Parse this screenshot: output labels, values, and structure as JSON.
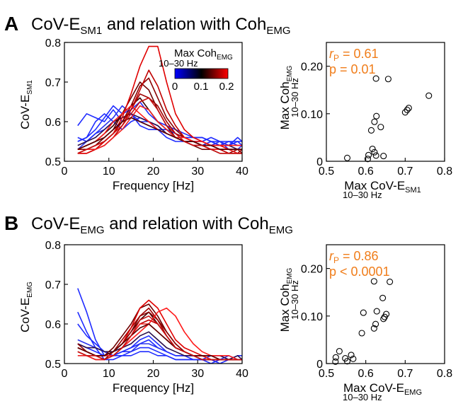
{
  "panels": [
    {
      "letter": "A",
      "title_prefix": "CoV-E",
      "title_sub": "SM1",
      "title_mid": " and relation with Coh",
      "title_sub2": "EMG"
    },
    {
      "letter": "B",
      "title_prefix": "CoV-E",
      "title_sub": "EMG",
      "title_mid": " and relation with Coh",
      "title_sub2": "EMG"
    }
  ],
  "colorbar": {
    "title": "Max Coh",
    "title_sub": "EMG",
    "range_label": "10–30 Hz",
    "ticks": [
      "0",
      "0.1",
      "0.2"
    ],
    "colors": [
      "#0000ff",
      "#000000",
      "#ff0000"
    ]
  },
  "chart_data": [
    {
      "type": "line",
      "panel": "A",
      "xlabel": "Frequency [Hz]",
      "ylabel_main": "CoV-E",
      "ylabel_sub": "SM1",
      "xlim": [
        0,
        40
      ],
      "ylim": [
        0.5,
        0.8
      ],
      "xticks": [
        "0",
        "10",
        "20",
        "30",
        "40"
      ],
      "yticks": [
        "0.5",
        "0.6",
        "0.7",
        "0.8"
      ],
      "x": [
        3,
        5,
        7,
        9,
        11,
        13,
        15,
        17,
        19,
        21,
        23,
        25,
        27,
        29,
        31,
        33,
        35,
        37,
        39,
        40
      ],
      "series": [
        {
          "color": "#1f2cff",
          "values": [
            0.59,
            0.62,
            0.61,
            0.6,
            0.63,
            0.6,
            0.61,
            0.6,
            0.59,
            0.58,
            0.58,
            0.57,
            0.56,
            0.55,
            0.55,
            0.56,
            0.55,
            0.54,
            0.56,
            0.55
          ]
        },
        {
          "color": "#1f2cff",
          "values": [
            0.55,
            0.56,
            0.58,
            0.61,
            0.64,
            0.62,
            0.63,
            0.65,
            0.62,
            0.6,
            0.59,
            0.58,
            0.57,
            0.56,
            0.56,
            0.55,
            0.55,
            0.55,
            0.54,
            0.54
          ]
        },
        {
          "color": "#1f2cff",
          "values": [
            0.55,
            0.56,
            0.6,
            0.62,
            0.6,
            0.61,
            0.62,
            0.59,
            0.58,
            0.58,
            0.56,
            0.55,
            0.55,
            0.54,
            0.54,
            0.55,
            0.54,
            0.54,
            0.55,
            0.55
          ]
        },
        {
          "color": "#2b35ee",
          "values": [
            0.53,
            0.55,
            0.57,
            0.59,
            0.61,
            0.64,
            0.62,
            0.6,
            0.6,
            0.59,
            0.57,
            0.56,
            0.55,
            0.55,
            0.54,
            0.54,
            0.55,
            0.53,
            0.53,
            0.54
          ]
        },
        {
          "color": "#1f2cff",
          "values": [
            0.56,
            0.55,
            0.57,
            0.58,
            0.6,
            0.58,
            0.6,
            0.61,
            0.6,
            0.58,
            0.58,
            0.57,
            0.56,
            0.56,
            0.56,
            0.55,
            0.54,
            0.55,
            0.55,
            0.54
          ]
        },
        {
          "color": "#2a0f4a",
          "values": [
            0.54,
            0.55,
            0.56,
            0.58,
            0.6,
            0.61,
            0.62,
            0.61,
            0.6,
            0.59,
            0.57,
            0.56,
            0.55,
            0.55,
            0.55,
            0.54,
            0.54,
            0.54,
            0.53,
            0.53
          ]
        },
        {
          "color": "#3b0000",
          "values": [
            0.53,
            0.54,
            0.55,
            0.57,
            0.59,
            0.62,
            0.64,
            0.66,
            0.63,
            0.6,
            0.58,
            0.56,
            0.55,
            0.55,
            0.54,
            0.53,
            0.53,
            0.53,
            0.53,
            0.53
          ]
        },
        {
          "color": "#6e0000",
          "values": [
            0.52,
            0.53,
            0.54,
            0.56,
            0.58,
            0.62,
            0.66,
            0.7,
            0.68,
            0.63,
            0.59,
            0.56,
            0.55,
            0.54,
            0.53,
            0.53,
            0.52,
            0.52,
            0.52,
            0.52
          ]
        },
        {
          "color": "#8a0000",
          "values": [
            0.53,
            0.53,
            0.54,
            0.55,
            0.57,
            0.6,
            0.64,
            0.69,
            0.71,
            0.66,
            0.61,
            0.58,
            0.56,
            0.55,
            0.54,
            0.53,
            0.53,
            0.52,
            0.53,
            0.52
          ]
        },
        {
          "color": "#a00000",
          "values": [
            0.52,
            0.53,
            0.53,
            0.55,
            0.57,
            0.6,
            0.63,
            0.67,
            0.66,
            0.64,
            0.6,
            0.57,
            0.56,
            0.55,
            0.54,
            0.54,
            0.53,
            0.53,
            0.52,
            0.53
          ]
        },
        {
          "color": "#c00000",
          "values": [
            0.52,
            0.52,
            0.53,
            0.54,
            0.56,
            0.59,
            0.63,
            0.68,
            0.73,
            0.69,
            0.63,
            0.59,
            0.56,
            0.55,
            0.54,
            0.53,
            0.53,
            0.52,
            0.52,
            0.52
          ]
        },
        {
          "color": "#e00000",
          "values": [
            0.52,
            0.52,
            0.53,
            0.55,
            0.57,
            0.61,
            0.67,
            0.74,
            0.79,
            0.79,
            0.7,
            0.62,
            0.58,
            0.56,
            0.55,
            0.54,
            0.54,
            0.53,
            0.53,
            0.53
          ]
        },
        {
          "color": "#ff1a1a",
          "values": [
            0.53,
            0.54,
            0.55,
            0.57,
            0.6,
            0.62,
            0.64,
            0.62,
            0.6,
            0.58,
            0.57,
            0.56,
            0.56,
            0.55,
            0.55,
            0.54,
            0.54,
            0.54,
            0.54,
            0.54
          ]
        },
        {
          "color": "#ee2020",
          "values": [
            0.52,
            0.53,
            0.53,
            0.54,
            0.56,
            0.58,
            0.61,
            0.64,
            0.63,
            0.6,
            0.58,
            0.56,
            0.55,
            0.54,
            0.54,
            0.53,
            0.53,
            0.53,
            0.52,
            0.52
          ]
        },
        {
          "color": "#550000",
          "values": [
            0.53,
            0.54,
            0.55,
            0.56,
            0.58,
            0.6,
            0.61,
            0.6,
            0.59,
            0.58,
            0.57,
            0.56,
            0.55,
            0.55,
            0.54,
            0.54,
            0.53,
            0.53,
            0.53,
            0.53
          ]
        },
        {
          "color": "#c81010",
          "values": [
            0.52,
            0.53,
            0.54,
            0.55,
            0.57,
            0.59,
            0.62,
            0.65,
            0.66,
            0.63,
            0.59,
            0.57,
            0.55,
            0.54,
            0.54,
            0.53,
            0.52,
            0.52,
            0.52,
            0.52
          ]
        }
      ]
    },
    {
      "type": "scatter",
      "panel": "A",
      "xlabel_main": "Max CoV-E",
      "xlabel_sub": "SM1",
      "xlabel_range": "10–30 Hz",
      "ylabel_main": "Max Coh",
      "ylabel_sub": "EMG",
      "ylabel_range": "10–30 Hz",
      "xlim": [
        0.5,
        0.8
      ],
      "ylim": [
        0,
        0.25
      ],
      "xticks": [
        "0.5",
        "0.6",
        "0.7",
        "0.8"
      ],
      "yticks": [
        "0",
        "0.10",
        "0.20"
      ],
      "stat_r_label": "r",
      "stat_r_sub": "P",
      "stat_r_value": " = 0.61",
      "stat_p": "p = 0.01",
      "points": [
        [
          0.553,
          0.007
        ],
        [
          0.605,
          0.005
        ],
        [
          0.607,
          0.013
        ],
        [
          0.617,
          0.026
        ],
        [
          0.622,
          0.019
        ],
        [
          0.626,
          0.012
        ],
        [
          0.645,
          0.011
        ],
        [
          0.614,
          0.065
        ],
        [
          0.622,
          0.083
        ],
        [
          0.627,
          0.095
        ],
        [
          0.638,
          0.072
        ],
        [
          0.626,
          0.174
        ],
        [
          0.657,
          0.173
        ],
        [
          0.7,
          0.103
        ],
        [
          0.705,
          0.108
        ],
        [
          0.709,
          0.112
        ],
        [
          0.76,
          0.138
        ]
      ]
    },
    {
      "type": "line",
      "panel": "B",
      "xlabel": "Frequency [Hz]",
      "ylabel_main": "CoV-E",
      "ylabel_sub": "EMG",
      "xlim": [
        0,
        40
      ],
      "ylim": [
        0.5,
        0.8
      ],
      "xticks": [
        "0",
        "10",
        "20",
        "30",
        "40"
      ],
      "yticks": [
        "0.5",
        "0.6",
        "0.7",
        "0.8"
      ],
      "x": [
        3,
        5,
        7,
        9,
        11,
        13,
        15,
        17,
        19,
        21,
        23,
        25,
        27,
        29,
        31,
        33,
        35,
        37,
        39,
        40
      ],
      "series": [
        {
          "color": "#1f2cff",
          "values": [
            0.69,
            0.63,
            0.56,
            0.52,
            0.52,
            0.53,
            0.54,
            0.55,
            0.56,
            0.54,
            0.53,
            0.52,
            0.52,
            0.51,
            0.51,
            0.51,
            0.51,
            0.51,
            0.51,
            0.51
          ]
        },
        {
          "color": "#1f2cff",
          "values": [
            0.63,
            0.58,
            0.54,
            0.51,
            0.51,
            0.52,
            0.53,
            0.54,
            0.54,
            0.53,
            0.52,
            0.51,
            0.51,
            0.51,
            0.51,
            0.51,
            0.5,
            0.51,
            0.51,
            0.51
          ]
        },
        {
          "color": "#1f2cff",
          "values": [
            0.6,
            0.57,
            0.55,
            0.53,
            0.52,
            0.52,
            0.52,
            0.53,
            0.53,
            0.52,
            0.52,
            0.51,
            0.51,
            0.51,
            0.51,
            0.5,
            0.51,
            0.51,
            0.51,
            0.51
          ]
        },
        {
          "color": "#2b35ee",
          "values": [
            0.56,
            0.55,
            0.54,
            0.53,
            0.52,
            0.53,
            0.53,
            0.55,
            0.55,
            0.54,
            0.53,
            0.52,
            0.52,
            0.52,
            0.51,
            0.51,
            0.51,
            0.52,
            0.51,
            0.51
          ]
        },
        {
          "color": "#1f2cff",
          "values": [
            0.55,
            0.54,
            0.53,
            0.52,
            0.52,
            0.53,
            0.54,
            0.56,
            0.57,
            0.55,
            0.53,
            0.52,
            0.52,
            0.52,
            0.51,
            0.52,
            0.52,
            0.51,
            0.52,
            0.52
          ]
        },
        {
          "color": "#2a0f4a",
          "values": [
            0.55,
            0.54,
            0.54,
            0.53,
            0.53,
            0.54,
            0.55,
            0.57,
            0.58,
            0.56,
            0.54,
            0.53,
            0.52,
            0.52,
            0.52,
            0.52,
            0.52,
            0.51,
            0.52,
            0.51
          ]
        },
        {
          "color": "#3b0000",
          "values": [
            0.54,
            0.53,
            0.52,
            0.52,
            0.53,
            0.55,
            0.58,
            0.61,
            0.63,
            0.6,
            0.57,
            0.54,
            0.53,
            0.52,
            0.52,
            0.51,
            0.51,
            0.51,
            0.51,
            0.51
          ]
        },
        {
          "color": "#6e0000",
          "values": [
            0.54,
            0.53,
            0.52,
            0.52,
            0.54,
            0.57,
            0.6,
            0.64,
            0.65,
            0.62,
            0.58,
            0.55,
            0.53,
            0.52,
            0.52,
            0.51,
            0.51,
            0.51,
            0.51,
            0.51
          ]
        },
        {
          "color": "#8a0000",
          "values": [
            0.55,
            0.53,
            0.52,
            0.51,
            0.53,
            0.55,
            0.58,
            0.62,
            0.63,
            0.61,
            0.58,
            0.55,
            0.53,
            0.52,
            0.51,
            0.51,
            0.51,
            0.51,
            0.51,
            0.51
          ]
        },
        {
          "color": "#a00000",
          "values": [
            0.53,
            0.52,
            0.52,
            0.52,
            0.53,
            0.56,
            0.59,
            0.62,
            0.64,
            0.61,
            0.57,
            0.54,
            0.53,
            0.52,
            0.52,
            0.51,
            0.51,
            0.51,
            0.51,
            0.51
          ]
        },
        {
          "color": "#c00000",
          "values": [
            0.53,
            0.52,
            0.51,
            0.51,
            0.52,
            0.54,
            0.57,
            0.6,
            0.61,
            0.6,
            0.57,
            0.54,
            0.53,
            0.52,
            0.52,
            0.51,
            0.51,
            0.51,
            0.51,
            0.51
          ]
        },
        {
          "color": "#e00000",
          "values": [
            0.54,
            0.53,
            0.52,
            0.52,
            0.53,
            0.55,
            0.59,
            0.64,
            0.66,
            0.64,
            0.6,
            0.56,
            0.54,
            0.53,
            0.52,
            0.52,
            0.51,
            0.51,
            0.51,
            0.51
          ]
        },
        {
          "color": "#ff1a1a",
          "values": [
            0.54,
            0.53,
            0.52,
            0.52,
            0.52,
            0.54,
            0.56,
            0.58,
            0.6,
            0.63,
            0.64,
            0.62,
            0.58,
            0.55,
            0.53,
            0.52,
            0.52,
            0.52,
            0.51,
            0.51
          ]
        },
        {
          "color": "#ee2020",
          "values": [
            0.52,
            0.52,
            0.51,
            0.51,
            0.52,
            0.54,
            0.57,
            0.6,
            0.6,
            0.58,
            0.56,
            0.54,
            0.53,
            0.52,
            0.52,
            0.51,
            0.51,
            0.51,
            0.51,
            0.51
          ]
        },
        {
          "color": "#550000",
          "values": [
            0.54,
            0.53,
            0.52,
            0.52,
            0.53,
            0.55,
            0.57,
            0.59,
            0.6,
            0.58,
            0.56,
            0.54,
            0.53,
            0.52,
            0.52,
            0.52,
            0.51,
            0.51,
            0.51,
            0.51
          ]
        },
        {
          "color": "#c81010",
          "values": [
            0.53,
            0.52,
            0.52,
            0.51,
            0.52,
            0.54,
            0.57,
            0.61,
            0.62,
            0.6,
            0.57,
            0.54,
            0.53,
            0.52,
            0.51,
            0.51,
            0.51,
            0.51,
            0.51,
            0.51
          ]
        }
      ]
    },
    {
      "type": "scatter",
      "panel": "B",
      "xlabel_main": "Max CoV-E",
      "xlabel_sub": "EMG",
      "xlabel_range": "10–30 Hz",
      "ylabel_main": "Max Coh",
      "ylabel_sub": "EMG",
      "ylabel_range": "10–30 Hz",
      "xlim": [
        0.5,
        0.8
      ],
      "ylim": [
        0,
        0.25
      ],
      "xticks": [
        "0.5",
        "0.6",
        "0.7",
        "0.8"
      ],
      "yticks": [
        "0",
        "0.10",
        "0.20"
      ],
      "stat_r_label": "r",
      "stat_r_sub": "P",
      "stat_r_value": " = 0.86",
      "stat_p": "p < 0.0001",
      "points": [
        [
          0.523,
          0.004
        ],
        [
          0.524,
          0.013
        ],
        [
          0.533,
          0.026
        ],
        [
          0.548,
          0.011
        ],
        [
          0.553,
          0.005
        ],
        [
          0.563,
          0.018
        ],
        [
          0.568,
          0.01
        ],
        [
          0.59,
          0.064
        ],
        [
          0.594,
          0.107
        ],
        [
          0.621,
          0.173
        ],
        [
          0.621,
          0.074
        ],
        [
          0.625,
          0.083
        ],
        [
          0.628,
          0.11
        ],
        [
          0.643,
          0.138
        ],
        [
          0.645,
          0.094
        ],
        [
          0.648,
          0.098
        ],
        [
          0.652,
          0.104
        ],
        [
          0.661,
          0.172
        ]
      ]
    }
  ]
}
